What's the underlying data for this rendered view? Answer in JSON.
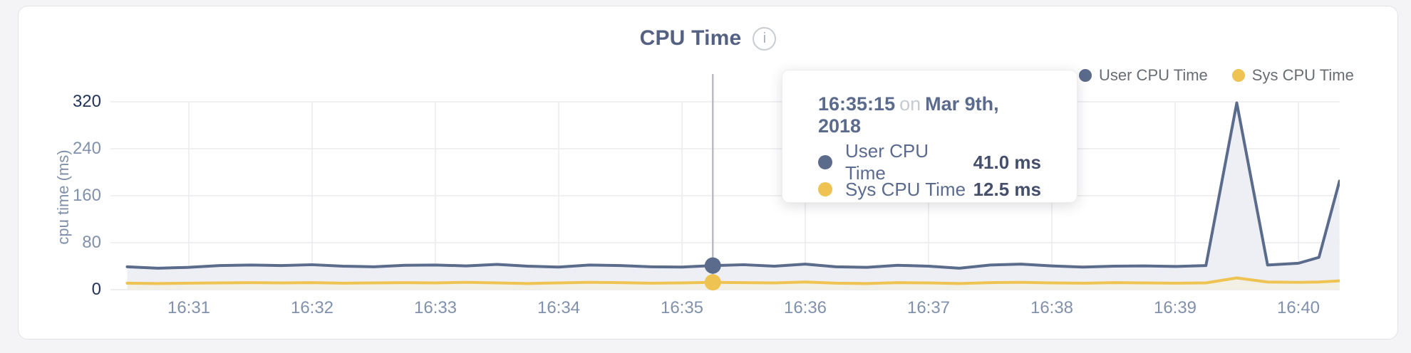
{
  "card": {
    "title": "CPU Time",
    "info_icon": "i"
  },
  "legend": [
    {
      "label": "User CPU Time",
      "color": "#5b6b8c"
    },
    {
      "label": "Sys CPU Time",
      "color": "#eec351"
    }
  ],
  "tooltip": {
    "time": "16:35:15",
    "connector": "on",
    "date": "Mar 9th, 2018",
    "rows": [
      {
        "label": "User CPU Time",
        "value": "41.0 ms",
        "color": "#5b6b8c"
      },
      {
        "label": "Sys CPU Time",
        "value": "12.5 ms",
        "color": "#eec351"
      }
    ]
  },
  "chart_data": {
    "type": "line",
    "title": "CPU Time",
    "xlabel": "",
    "ylabel": "cpu time (ms)",
    "ylim": [
      0,
      320
    ],
    "yticks": [
      0,
      80,
      160,
      240,
      320
    ],
    "xticks": [
      "16:31",
      "16:32",
      "16:33",
      "16:34",
      "16:35",
      "16:36",
      "16:37",
      "16:38",
      "16:39",
      "16:40"
    ],
    "grid": true,
    "legend_position": "top-right",
    "x": [
      "16:30:30",
      "16:30:45",
      "16:31:00",
      "16:31:15",
      "16:31:30",
      "16:31:45",
      "16:32:00",
      "16:32:15",
      "16:32:30",
      "16:32:45",
      "16:33:00",
      "16:33:15",
      "16:33:30",
      "16:33:45",
      "16:34:00",
      "16:34:15",
      "16:34:30",
      "16:34:45",
      "16:35:00",
      "16:35:15",
      "16:35:30",
      "16:35:45",
      "16:36:00",
      "16:36:15",
      "16:36:30",
      "16:36:45",
      "16:37:00",
      "16:37:15",
      "16:37:30",
      "16:37:45",
      "16:38:00",
      "16:38:15",
      "16:38:30",
      "16:38:45",
      "16:39:00",
      "16:39:15",
      "16:39:30",
      "16:39:45",
      "16:40:00",
      "16:40:10",
      "16:40:20"
    ],
    "series": [
      {
        "name": "User CPU Time",
        "color": "#5b6b8c",
        "fill": "#edeff4",
        "values": [
          39,
          36.5,
          38,
          41,
          42,
          41,
          42.5,
          40,
          39,
          41.5,
          42,
          40.5,
          43,
          40,
          38.5,
          42,
          41,
          39,
          38.5,
          41,
          42.5,
          40,
          43.5,
          39,
          38,
          41.5,
          40,
          36.5,
          42,
          43.5,
          40.5,
          38.5,
          40,
          40.5,
          39.5,
          41,
          318,
          42,
          45,
          55,
          185
        ]
      },
      {
        "name": "Sys CPU Time",
        "color": "#eec351",
        "fill": "#f2efe4",
        "values": [
          11,
          10.5,
          11,
          11.5,
          12,
          11.5,
          12,
          11,
          11.5,
          12,
          11.5,
          12.5,
          11.5,
          10.5,
          11.5,
          12.5,
          12,
          11,
          11.5,
          12.5,
          12,
          11.5,
          13,
          11,
          10.5,
          12,
          11.5,
          10.5,
          12,
          12.5,
          11.5,
          11,
          12,
          11.5,
          11,
          11.5,
          20,
          13,
          12.5,
          13,
          15
        ]
      }
    ],
    "selected": {
      "x": "16:35:15",
      "user_value": 41.0,
      "sys_value": 12.5
    }
  }
}
